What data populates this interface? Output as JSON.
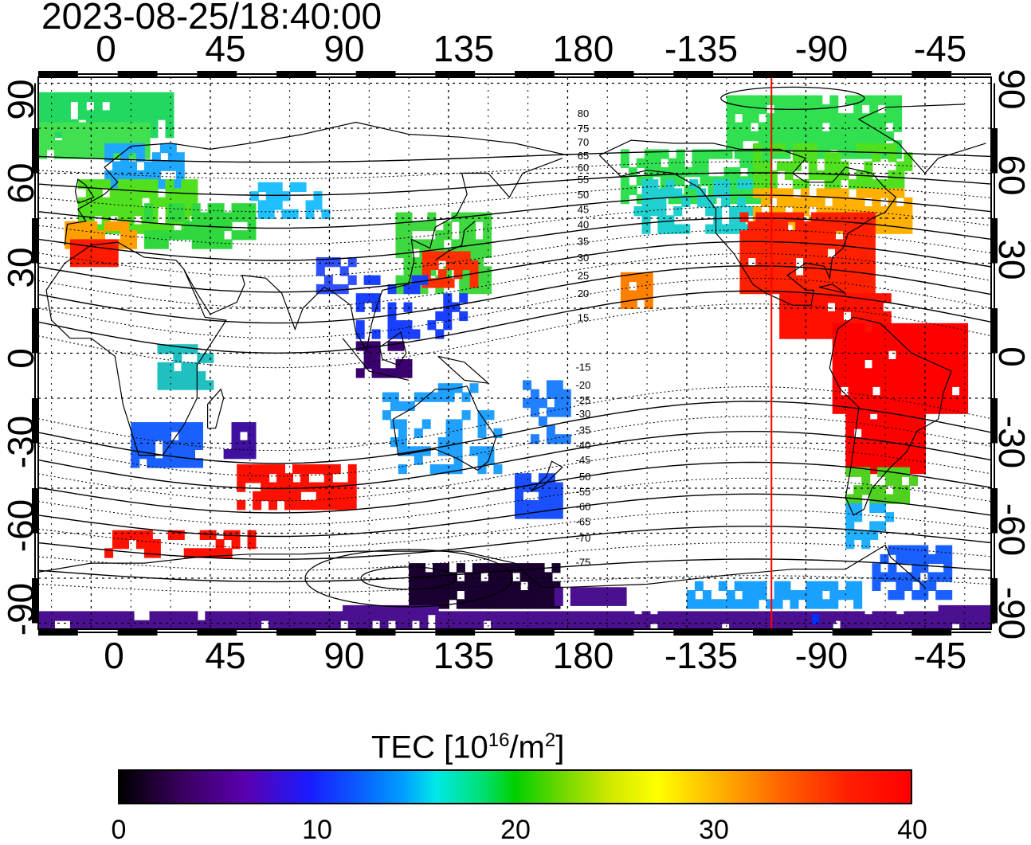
{
  "title": "2023-08-25/18:40:00",
  "axes": {
    "top_lon_labels": [
      "0",
      "45",
      "90",
      "135",
      "180",
      "-135",
      "-90",
      "-45"
    ],
    "bottom_lon_labels": [
      "0",
      "45",
      "90",
      "135",
      "180",
      "-135",
      "-90",
      "-45"
    ],
    "left_lat_labels": [
      "90",
      "60",
      "30",
      "0",
      "-30",
      "-60",
      "-90"
    ],
    "right_lat_labels": [
      "90",
      "60",
      "30",
      "0",
      "-30",
      "-60",
      "-90"
    ]
  },
  "map": {
    "lon_range": [
      -20,
      340
    ],
    "lat_range": [
      -92,
      92
    ],
    "grid": true,
    "magnetic_latitude_labels": [
      "80",
      "75",
      "70",
      "65",
      "60",
      "55",
      "50",
      "45",
      "40",
      "35",
      "30",
      "25",
      "20",
      "15",
      "-15",
      "-20",
      "-25",
      "-30",
      "-35",
      "-40",
      "-45",
      "-50",
      "-55",
      "-60",
      "-65",
      "-70",
      "-75"
    ],
    "marker_line": {
      "lon": -103,
      "color": "#ff0000"
    }
  },
  "colorbar": {
    "title_main": "TEC  [10",
    "title_exp1": "16",
    "title_mid": "/m",
    "title_exp2": "2",
    "title_end": "]",
    "labels": [
      "0",
      "10",
      "20",
      "30",
      "40"
    ],
    "range": [
      0,
      40
    ]
  },
  "colors": {
    "high": "#ff0000",
    "low": "#1a0030",
    "mid": "#00d000"
  }
}
